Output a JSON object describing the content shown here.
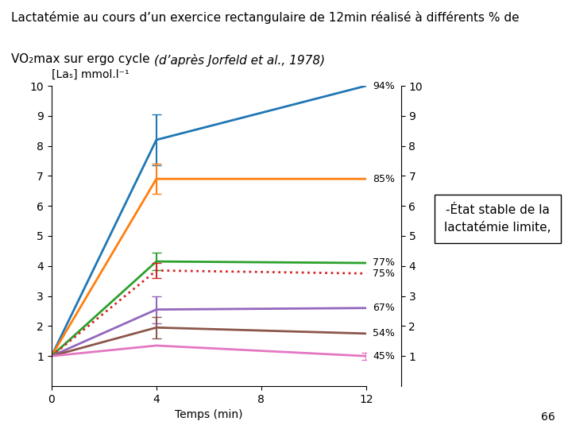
{
  "chart_data": {
    "type": "line",
    "title": "Lactatémie au cours d’un exercice rectangulaire de 12min réalisé à différents % de",
    "subtitle": "VO₂max sur ergo cycle",
    "source": "(d’après Jorfeld et al., 1978)",
    "x_label": "Temps (min)",
    "y_label": "[Laₛ] mmol.l⁻¹",
    "xlim": [
      0,
      12
    ],
    "ylim": [
      0,
      10
    ],
    "xticks": [
      0,
      4,
      8,
      12
    ],
    "yticks": [
      1,
      2,
      3,
      4,
      5,
      6,
      7,
      8,
      9,
      10
    ],
    "right_axis_ticks": true,
    "series": [
      {
        "name": "94%",
        "x": [
          0,
          4,
          12
        ],
        "values": [
          1.0,
          8.2,
          10.0
        ],
        "errors": [
          null,
          0.85,
          null
        ],
        "line_style": "solid"
      },
      {
        "name": "85%",
        "x": [
          0,
          4,
          12
        ],
        "values": [
          1.0,
          6.9,
          6.9
        ],
        "errors": [
          null,
          0.5,
          null
        ],
        "line_style": "solid"
      },
      {
        "name": "77%",
        "x": [
          0,
          4,
          12
        ],
        "values": [
          1.0,
          4.15,
          4.1
        ],
        "errors": [
          null,
          0.3,
          null
        ],
        "line_style": "solid"
      },
      {
        "name": "75%",
        "x": [
          0,
          4,
          12
        ],
        "values": [
          1.0,
          3.85,
          3.75
        ],
        "errors": [
          null,
          0.25,
          null
        ],
        "line_style": "dotted"
      },
      {
        "name": "67%",
        "x": [
          0,
          4,
          12
        ],
        "values": [
          1.0,
          2.55,
          2.6
        ],
        "errors": [
          null,
          0.45,
          null
        ],
        "line_style": "solid"
      },
      {
        "name": "54%",
        "x": [
          0,
          4,
          12
        ],
        "values": [
          1.0,
          1.95,
          1.75
        ],
        "errors": [
          null,
          0.35,
          null
        ],
        "line_style": "solid"
      },
      {
        "name": "45%",
        "x": [
          0,
          4,
          12
        ],
        "values": [
          1.0,
          1.35,
          1.0
        ],
        "errors": [
          null,
          null,
          0.12
        ],
        "line_style": "solid"
      }
    ],
    "annotation_box": [
      "-État stable de la",
      "lactatémie limite,"
    ],
    "footer": "66"
  }
}
